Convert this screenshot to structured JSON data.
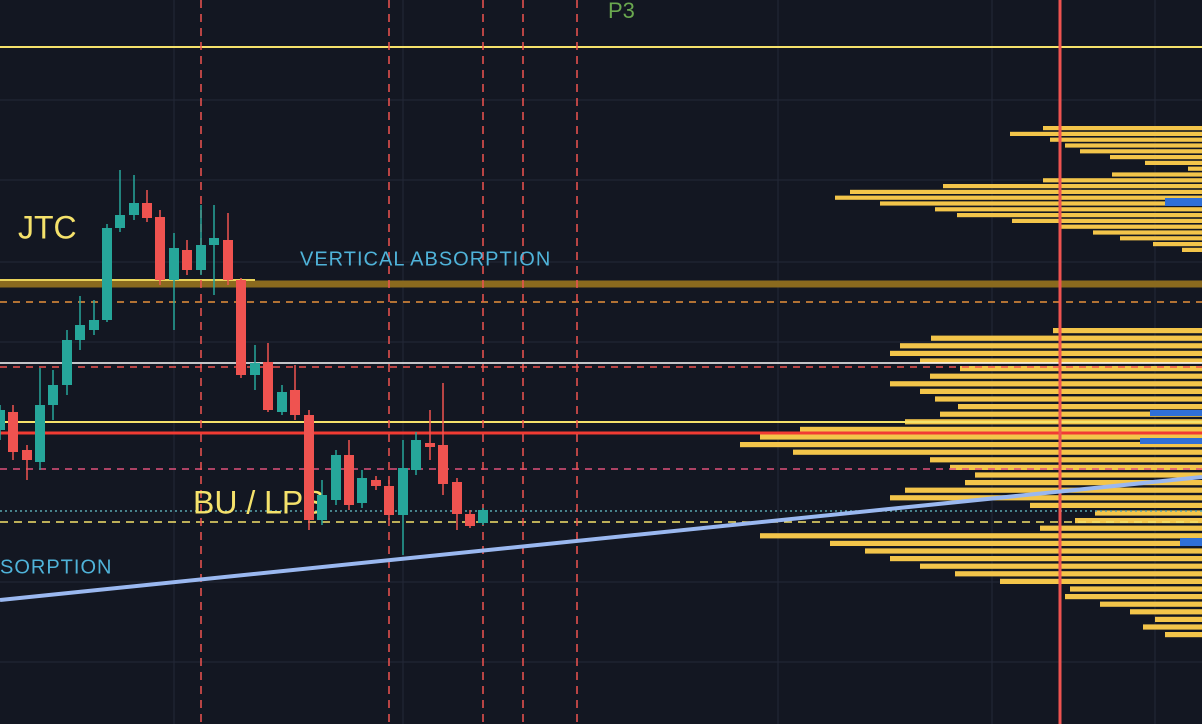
{
  "labels": {
    "p3": "P3",
    "jtc": "JTC",
    "vertical_absorption": "VERTICAL ABSORPTION",
    "bu_lps": "BU / LPS",
    "absorption_cut": "SORPTION"
  }
}
